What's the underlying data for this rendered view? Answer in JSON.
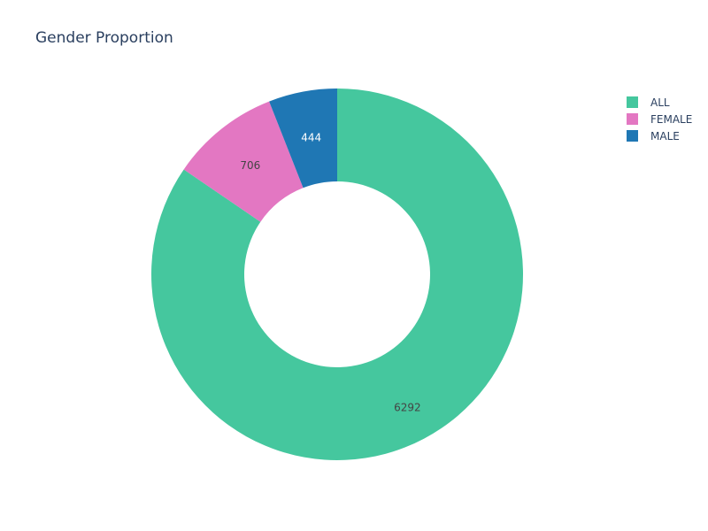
{
  "chart_data": {
    "type": "pie",
    "hole": true,
    "title": "Gender Proportion",
    "categories": [
      "ALL",
      "FEMALE",
      "MALE"
    ],
    "values": [
      6292,
      706,
      444
    ],
    "colors": [
      "#45c79e",
      "#e377c2",
      "#1f77b4"
    ],
    "label_colors": [
      "#444444",
      "#444444",
      "#ffffff"
    ],
    "legend_position": "top-right",
    "direction": "clockwise",
    "start": "top"
  }
}
